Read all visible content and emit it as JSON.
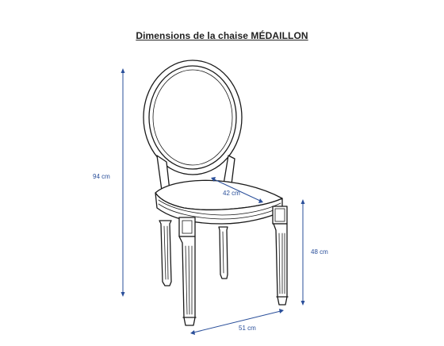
{
  "title": "Dimensions de la chaise MÉDAILLON",
  "dimensions": {
    "height_total": "94 cm",
    "seat_depth": "42 cm",
    "seat_height": "48 cm",
    "width": "51 cm"
  },
  "colors": {
    "dimension": "#2a4f9a",
    "ink": "#1a1a1a",
    "background": "#ffffff"
  }
}
